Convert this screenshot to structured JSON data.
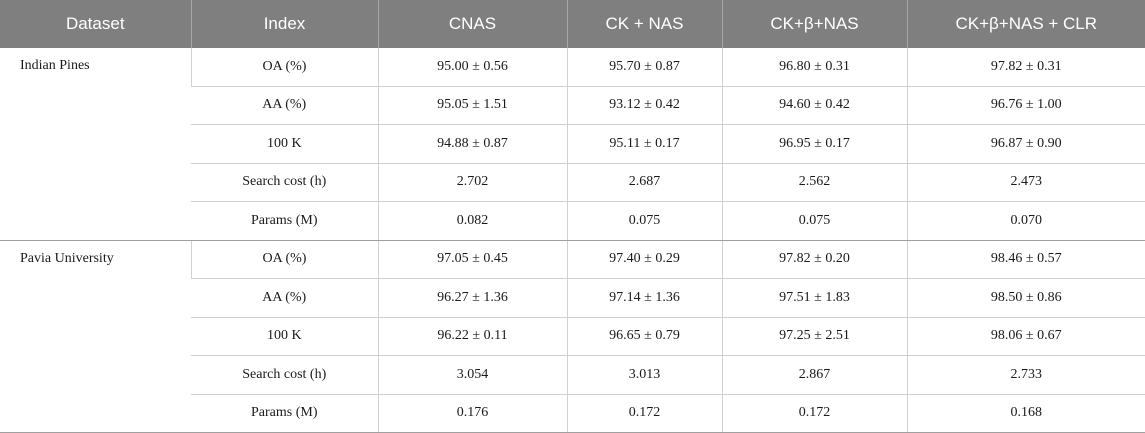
{
  "columns": [
    "Dataset",
    "Index",
    "CNAS",
    "CK + NAS",
    "CK+β+NAS",
    "CK+β+NAS + CLR"
  ],
  "groups": [
    {
      "dataset": "Indian Pines",
      "rows": [
        {
          "index": "OA (%)",
          "values": [
            "95.00 ± 0.56",
            "95.70 ± 0.87",
            "96.80 ± 0.31",
            "97.82 ± 0.31"
          ]
        },
        {
          "index": "AA (%)",
          "values": [
            "95.05 ± 1.51",
            "93.12 ± 0.42",
            "94.60 ± 0.42",
            "96.76 ± 1.00"
          ]
        },
        {
          "index": "100 K",
          "values": [
            "94.88 ± 0.87",
            "95.11 ± 0.17",
            "96.95 ± 0.17",
            "96.87 ± 0.90"
          ]
        },
        {
          "index": "Search cost (h)",
          "values": [
            "2.702",
            "2.687",
            "2.562",
            "2.473"
          ]
        },
        {
          "index": "Params (M)",
          "values": [
            "0.082",
            "0.075",
            "0.075",
            "0.070"
          ]
        }
      ]
    },
    {
      "dataset": "Pavia University",
      "rows": [
        {
          "index": "OA (%)",
          "values": [
            "97.05 ± 0.45",
            "97.40 ± 0.29",
            "97.82 ± 0.20",
            "98.46 ± 0.57"
          ]
        },
        {
          "index": "AA (%)",
          "values": [
            "96.27 ± 1.36",
            "97.14 ± 1.36",
            "97.51 ± 1.83",
            "98.50 ± 0.86"
          ]
        },
        {
          "index": "100 K",
          "values": [
            "96.22 ± 0.11",
            "96.65 ± 0.79",
            "97.25 ± 2.51",
            "98.06 ± 0.67"
          ]
        },
        {
          "index": "Search cost (h)",
          "values": [
            "3.054",
            "3.013",
            "2.867",
            "2.733"
          ]
        },
        {
          "index": "Params (M)",
          "values": [
            "0.176",
            "0.172",
            "0.172",
            "0.168"
          ]
        }
      ]
    }
  ]
}
